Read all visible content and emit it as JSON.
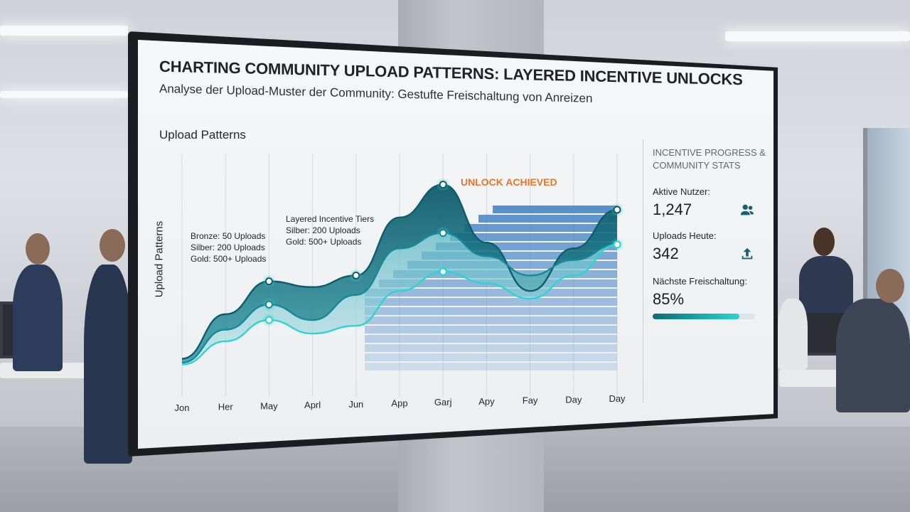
{
  "dashboard": {
    "title": "CHARTING COMMUNITY UPLOAD PATTERNS: LAYERED INCENTIVE UNLOCKS",
    "subtitle": "Analyse der Upload-Muster der Community: Gestufte Freischaltung von Anreizen",
    "chart_heading": "Upload Patterns"
  },
  "chart_data": {
    "type": "area",
    "ylabel": "Upload Patterns",
    "categories": [
      "Jon",
      "Her",
      "May",
      "Aprl",
      "Jun",
      "App",
      "Garj",
      "Apy",
      "Fay",
      "Day",
      "Day"
    ],
    "series": [
      {
        "values": [
          5,
          28,
          45,
          42,
          48,
          78,
          95,
          65,
          40,
          62,
          82
        ]
      },
      {
        "values": [
          3,
          20,
          33,
          25,
          38,
          62,
          70,
          58,
          48,
          56,
          64
        ]
      },
      {
        "values": [
          2,
          14,
          25,
          18,
          22,
          40,
          50,
          44,
          36,
          48,
          64
        ]
      }
    ],
    "bars_visible": true,
    "annotations": {
      "tiers_left": [
        "Bronze: 50 Uploads",
        "Silber: 200 Uploads",
        "Gold: 500+ Uploads"
      ],
      "tiers_heading": "Layered Incentive Tiers",
      "tiers_mid": [
        "Silber: 200 Uploads",
        "Gold: 500+ Uploads"
      ],
      "unlock": "UNLOCK ACHIEVED"
    },
    "colors": {
      "dark": "#0f5b6b",
      "mid": "#168a96",
      "light": "#2fd3d0",
      "bars": "#3f7fc4"
    }
  },
  "panel": {
    "heading": "INCENTIVE PROGRESS & COMMUNITY STATS",
    "active_users_label": "Aktive Nutzer:",
    "active_users_value": "1,247",
    "active_users_icon": "users-icon",
    "uploads_today_label": "Uploads Heute:",
    "uploads_today_value": "342",
    "uploads_today_icon": "upload-icon",
    "next_unlock_label": "Nächste Freischaltung:",
    "next_unlock_value": "85%",
    "next_unlock_progress": 0.85
  }
}
